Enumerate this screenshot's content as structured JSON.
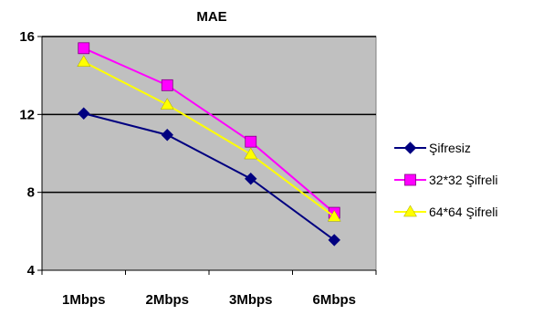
{
  "chart_data": {
    "type": "line",
    "title": "MAE",
    "categories": [
      "1Mbps",
      "2Mbps",
      "3Mbps",
      "6Mbps"
    ],
    "ylim": [
      4,
      16
    ],
    "yticks": [
      4,
      8,
      12,
      16
    ],
    "grid": true,
    "legend_position": "right",
    "plot_background": "#c0c0c0",
    "series": [
      {
        "name": "Şifresiz",
        "values": [
          12.05,
          10.95,
          8.7,
          5.55
        ],
        "color": "#000080",
        "marker": "diamond"
      },
      {
        "name": "32*32 Şifreli",
        "values": [
          15.4,
          13.5,
          10.6,
          6.95
        ],
        "color": "#ff00ff",
        "marker": "square"
      },
      {
        "name": "64*64 Şifreli",
        "values": [
          14.7,
          12.5,
          9.95,
          6.75
        ],
        "color": "#ffff00",
        "marker": "triangle"
      }
    ]
  }
}
